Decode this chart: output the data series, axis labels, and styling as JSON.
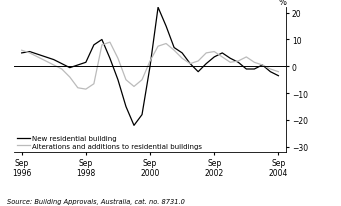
{
  "title": "",
  "ylabel": "%",
  "ylim": [
    -32,
    22
  ],
  "yticks": [
    -30,
    -20,
    -10,
    0,
    10,
    20
  ],
  "xlim": [
    1996.5,
    2005.0
  ],
  "source_text": "Source: Building Approvals, Australia, cat. no. 8731.0",
  "legend_entries": [
    "New residential building",
    "Alterations and additions to residential buildings"
  ],
  "xtick_years": [
    1996,
    1998,
    2000,
    2002,
    2004
  ],
  "new_residential": {
    "color": "#000000",
    "lw": 0.9,
    "t": [
      1996.75,
      1997.0,
      1997.25,
      1997.5,
      1997.75,
      1998.0,
      1998.25,
      1998.5,
      1998.75,
      1999.0,
      1999.25,
      1999.5,
      1999.75,
      2000.0,
      2000.25,
      2000.5,
      2000.75,
      2001.0,
      2001.25,
      2001.5,
      2001.75,
      2002.0,
      2002.25,
      2002.5,
      2002.75,
      2003.0,
      2003.25,
      2003.5,
      2003.75,
      2004.0,
      2004.25,
      2004.5,
      2004.75
    ],
    "v": [
      5.0,
      5.5,
      4.5,
      3.5,
      2.5,
      1.0,
      -0.5,
      0.5,
      1.5,
      8.0,
      10.0,
      3.0,
      -5.0,
      -15.0,
      -22.0,
      -18.0,
      0.0,
      22.0,
      15.0,
      7.0,
      5.0,
      1.0,
      -2.0,
      1.0,
      3.5,
      5.0,
      3.0,
      1.5,
      -1.0,
      -1.0,
      0.5,
      -2.0,
      -3.5
    ]
  },
  "alterations": {
    "color": "#bbbbbb",
    "lw": 0.9,
    "t": [
      1996.75,
      1997.0,
      1997.25,
      1997.5,
      1997.75,
      1998.0,
      1998.25,
      1998.5,
      1998.75,
      1999.0,
      1999.25,
      1999.5,
      1999.75,
      2000.0,
      2000.25,
      2000.5,
      2000.75,
      2001.0,
      2001.25,
      2001.5,
      2001.75,
      2002.0,
      2002.25,
      2002.5,
      2002.75,
      2003.0,
      2003.25,
      2003.5,
      2003.75,
      2004.0,
      2004.25,
      2004.5,
      2004.75
    ],
    "v": [
      6.0,
      5.0,
      3.5,
      2.0,
      0.5,
      -1.0,
      -4.0,
      -8.0,
      -8.5,
      -6.5,
      8.0,
      9.0,
      3.0,
      -5.0,
      -7.5,
      -5.0,
      2.0,
      7.5,
      8.5,
      6.0,
      3.0,
      1.0,
      2.0,
      5.0,
      5.5,
      3.5,
      1.5,
      2.0,
      3.5,
      1.5,
      0.5,
      -1.0,
      -2.0
    ]
  },
  "bg_color": "#ffffff",
  "zero_line_color": "#000000"
}
